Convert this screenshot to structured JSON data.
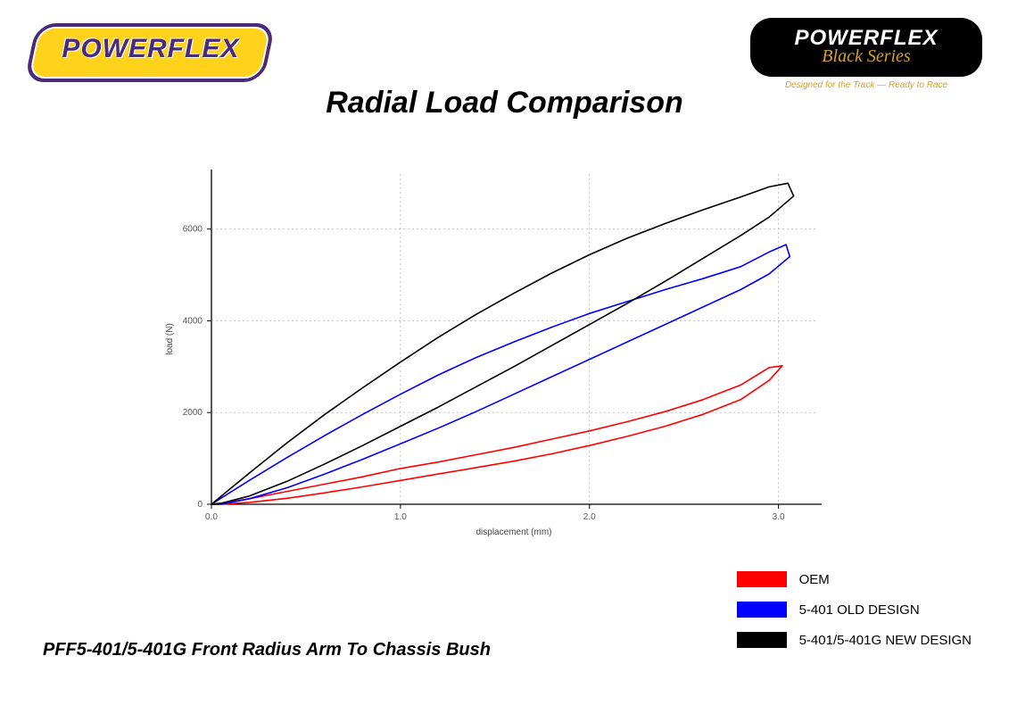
{
  "branding": {
    "left_logo_text": "POWERFLEX",
    "right_logo_line1": "POWERFLEX",
    "right_logo_line2": "Black Series",
    "right_logo_tagline": "Designed for the Track — Ready to Race"
  },
  "title": "Radial Load Comparison",
  "caption": "PFF5-401/5-401G Front Radius Arm To Chassis Bush",
  "chart": {
    "type": "line-hysteresis",
    "x_label": "displacement (mm)",
    "y_label": "load (N)",
    "x_range": [
      0.0,
      3.2
    ],
    "y_range": [
      0,
      7200
    ],
    "x_ticks": [
      0.0,
      1.0,
      2.0,
      3.0
    ],
    "y_ticks": [
      0,
      2000,
      4000,
      6000
    ],
    "x_tick_labels": [
      "0.0",
      "1.0",
      "2.0",
      "3.0"
    ],
    "y_tick_labels": [
      "0",
      "2000",
      "4000",
      "6000"
    ],
    "background_color": "#ffffff",
    "grid_color": "#a0a0a0",
    "axis_color": "#000000",
    "line_width": 1.6,
    "tick_font_size": 10,
    "label_font_size": 10,
    "series": [
      {
        "id": "oem",
        "color": "#ff0000",
        "upper": [
          [
            0.0,
            0
          ],
          [
            0.1,
            50
          ],
          [
            0.2,
            120
          ],
          [
            0.4,
            280
          ],
          [
            0.6,
            440
          ],
          [
            0.8,
            600
          ],
          [
            1.0,
            780
          ],
          [
            1.2,
            920
          ],
          [
            1.4,
            1080
          ],
          [
            1.6,
            1240
          ],
          [
            1.8,
            1420
          ],
          [
            2.0,
            1600
          ],
          [
            2.2,
            1800
          ],
          [
            2.4,
            2020
          ],
          [
            2.6,
            2280
          ],
          [
            2.8,
            2600
          ],
          [
            2.95,
            2980
          ],
          [
            3.02,
            3020
          ]
        ],
        "lower": [
          [
            3.02,
            3020
          ],
          [
            2.95,
            2700
          ],
          [
            2.8,
            2280
          ],
          [
            2.6,
            1960
          ],
          [
            2.4,
            1700
          ],
          [
            2.2,
            1480
          ],
          [
            2.0,
            1280
          ],
          [
            1.8,
            1100
          ],
          [
            1.6,
            940
          ],
          [
            1.4,
            800
          ],
          [
            1.2,
            660
          ],
          [
            1.0,
            520
          ],
          [
            0.8,
            380
          ],
          [
            0.6,
            250
          ],
          [
            0.4,
            130
          ],
          [
            0.2,
            40
          ],
          [
            0.05,
            0
          ],
          [
            0.0,
            0
          ]
        ]
      },
      {
        "id": "old",
        "color": "#0000ff",
        "upper": [
          [
            0.0,
            0
          ],
          [
            0.1,
            260
          ],
          [
            0.2,
            520
          ],
          [
            0.4,
            1020
          ],
          [
            0.6,
            1500
          ],
          [
            0.8,
            1960
          ],
          [
            1.0,
            2400
          ],
          [
            1.2,
            2820
          ],
          [
            1.4,
            3200
          ],
          [
            1.6,
            3540
          ],
          [
            1.8,
            3860
          ],
          [
            2.0,
            4160
          ],
          [
            2.2,
            4420
          ],
          [
            2.4,
            4680
          ],
          [
            2.6,
            4920
          ],
          [
            2.8,
            5180
          ],
          [
            2.95,
            5500
          ],
          [
            3.04,
            5660
          ],
          [
            3.06,
            5400
          ]
        ],
        "lower": [
          [
            3.06,
            5400
          ],
          [
            2.95,
            5020
          ],
          [
            2.8,
            4680
          ],
          [
            2.6,
            4300
          ],
          [
            2.4,
            3920
          ],
          [
            2.2,
            3540
          ],
          [
            2.0,
            3160
          ],
          [
            1.8,
            2780
          ],
          [
            1.6,
            2400
          ],
          [
            1.4,
            2020
          ],
          [
            1.2,
            1660
          ],
          [
            1.0,
            1320
          ],
          [
            0.8,
            980
          ],
          [
            0.6,
            660
          ],
          [
            0.4,
            360
          ],
          [
            0.2,
            120
          ],
          [
            0.05,
            0
          ],
          [
            0.0,
            0
          ]
        ]
      },
      {
        "id": "new",
        "color": "#000000",
        "upper": [
          [
            0.0,
            0
          ],
          [
            0.1,
            340
          ],
          [
            0.2,
            680
          ],
          [
            0.4,
            1340
          ],
          [
            0.6,
            1960
          ],
          [
            0.8,
            2540
          ],
          [
            1.0,
            3100
          ],
          [
            1.2,
            3640
          ],
          [
            1.4,
            4140
          ],
          [
            1.6,
            4600
          ],
          [
            1.8,
            5040
          ],
          [
            2.0,
            5440
          ],
          [
            2.2,
            5800
          ],
          [
            2.4,
            6120
          ],
          [
            2.6,
            6420
          ],
          [
            2.8,
            6700
          ],
          [
            2.95,
            6920
          ],
          [
            3.05,
            7000
          ],
          [
            3.08,
            6720
          ]
        ],
        "lower": [
          [
            3.08,
            6720
          ],
          [
            2.95,
            6260
          ],
          [
            2.8,
            5860
          ],
          [
            2.6,
            5360
          ],
          [
            2.4,
            4860
          ],
          [
            2.2,
            4380
          ],
          [
            2.0,
            3920
          ],
          [
            1.8,
            3460
          ],
          [
            1.6,
            3000
          ],
          [
            1.4,
            2560
          ],
          [
            1.2,
            2120
          ],
          [
            1.0,
            1700
          ],
          [
            0.8,
            1280
          ],
          [
            0.6,
            880
          ],
          [
            0.4,
            500
          ],
          [
            0.2,
            180
          ],
          [
            0.05,
            20
          ],
          [
            0.0,
            0
          ]
        ]
      }
    ]
  },
  "legend": {
    "items": [
      {
        "color": "#ff0000",
        "label": "OEM"
      },
      {
        "color": "#0000ff",
        "label": "5-401 OLD DESIGN"
      },
      {
        "color": "#000000",
        "label": "5-401/5-401G NEW DESIGN"
      }
    ]
  }
}
